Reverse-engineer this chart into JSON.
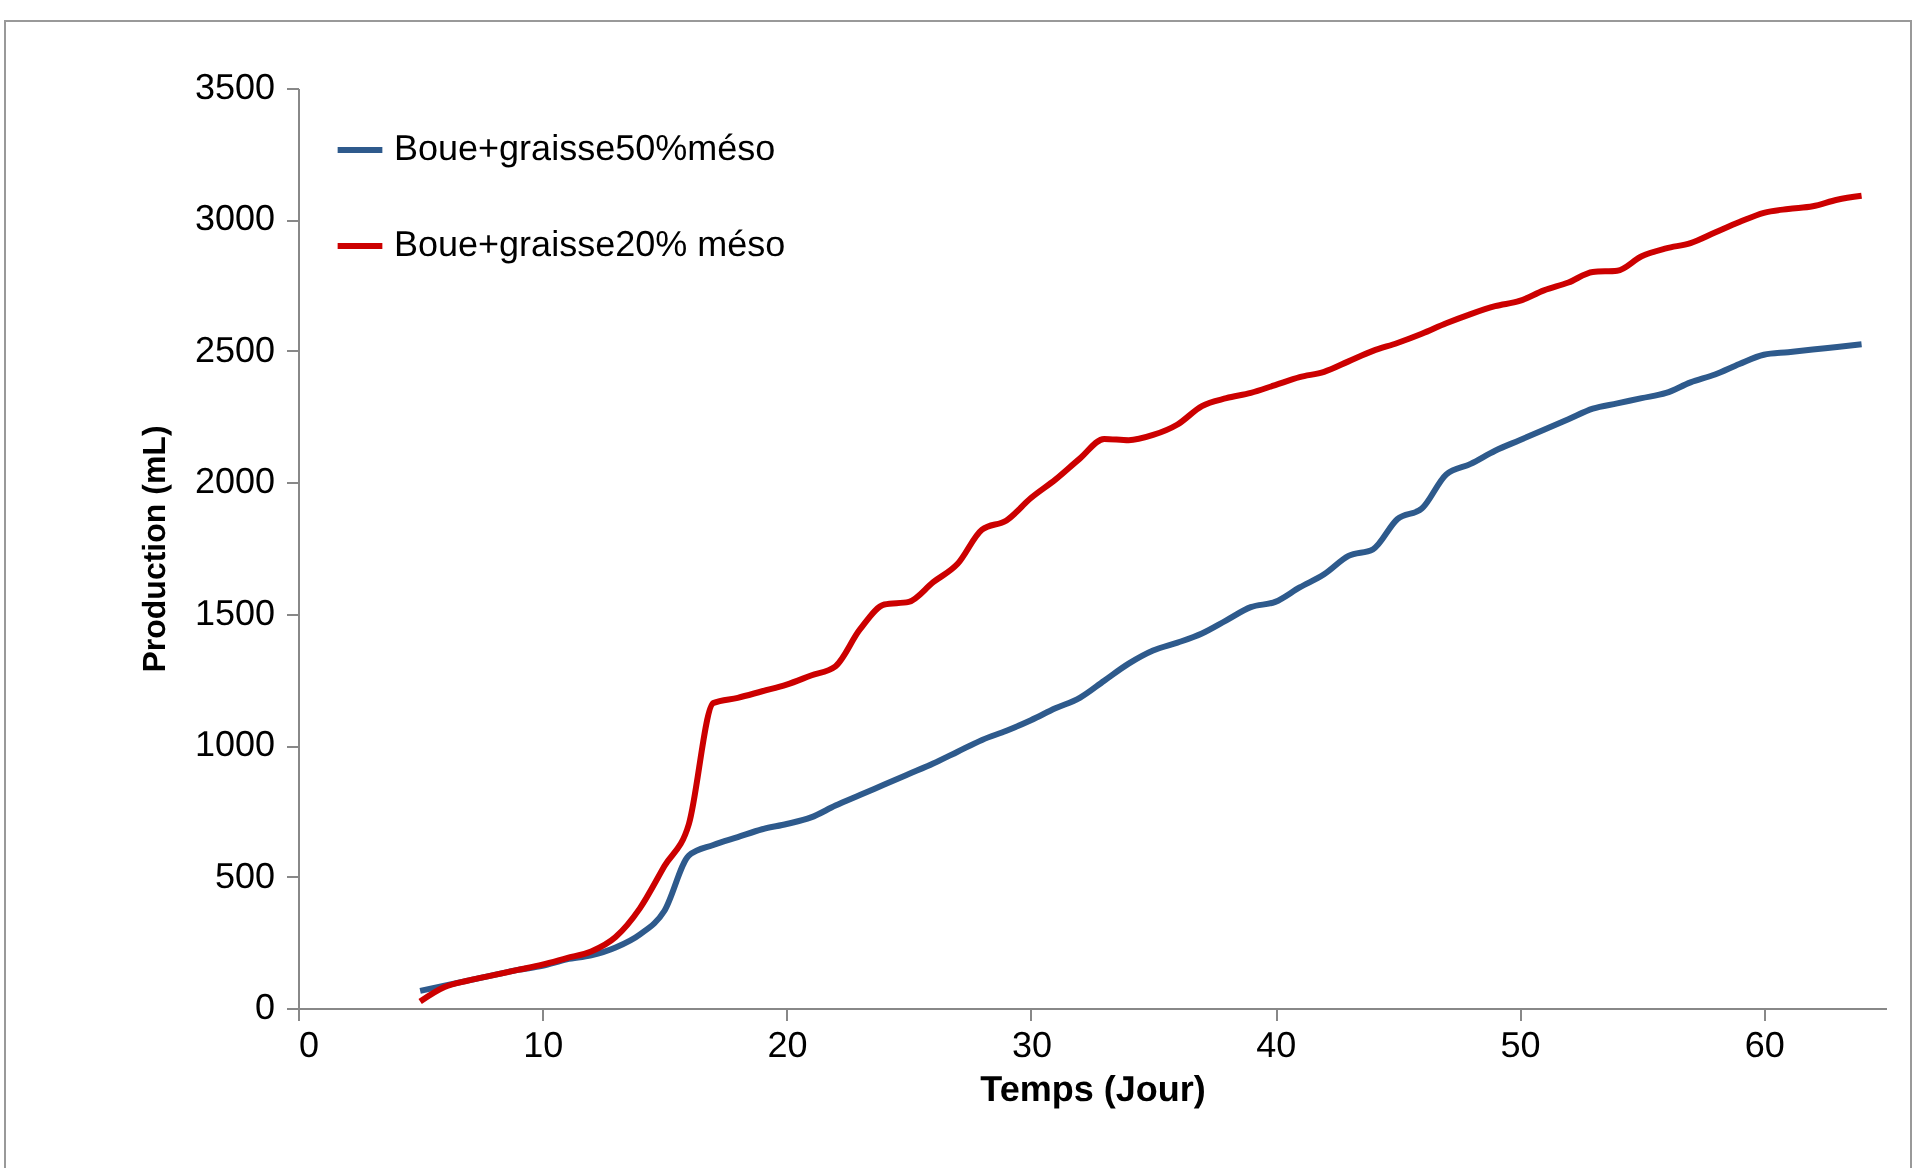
{
  "chart_data": {
    "type": "line",
    "xlabel": "Temps (Jour)",
    "ylabel": "Production (mL)",
    "x": [
      5,
      6,
      7,
      8,
      9,
      10,
      11,
      12,
      13,
      14,
      15,
      16,
      17,
      18,
      19,
      20,
      21,
      22,
      23,
      24,
      25,
      26,
      27,
      28,
      29,
      30,
      31,
      32,
      33,
      34,
      35,
      36,
      37,
      38,
      39,
      40,
      41,
      42,
      43,
      44,
      45,
      46,
      47,
      48,
      49,
      50,
      51,
      52,
      53,
      54,
      55,
      56,
      57,
      58,
      59,
      60,
      61,
      62,
      63,
      64
    ],
    "series": [
      {
        "name": "Boue+graisse50%méso",
        "color": "#2e5a8c",
        "values": [
          65,
          85,
          105,
          125,
          145,
          160,
          185,
          200,
          230,
          280,
          370,
          580,
          620,
          650,
          680,
          700,
          725,
          770,
          810,
          850,
          890,
          930,
          975,
          1020,
          1055,
          1095,
          1140,
          1180,
          1245,
          1310,
          1360,
          1390,
          1425,
          1475,
          1525,
          1545,
          1600,
          1650,
          1720,
          1745,
          1860,
          1900,
          2030,
          2070,
          2120,
          2160,
          2200,
          2240,
          2280,
          2300,
          2320,
          2340,
          2380,
          2410,
          2450,
          2485,
          2495,
          2505,
          2515,
          2525
        ]
      },
      {
        "name": "Boue+graisse20% méso",
        "color": "#cc0000",
        "values": [
          25,
          80,
          105,
          125,
          145,
          165,
          190,
          215,
          270,
          380,
          540,
          700,
          1160,
          1180,
          1205,
          1230,
          1265,
          1300,
          1440,
          1535,
          1545,
          1620,
          1690,
          1820,
          1855,
          1940,
          2010,
          2090,
          2165,
          2160,
          2180,
          2220,
          2290,
          2320,
          2340,
          2370,
          2400,
          2420,
          2460,
          2500,
          2530,
          2565,
          2605,
          2640,
          2670,
          2690,
          2730,
          2760,
          2800,
          2805,
          2860,
          2890,
          2910,
          2950,
          2990,
          3025,
          3040,
          3050,
          3075,
          3090
        ]
      }
    ],
    "xlim": [
      0,
      65
    ],
    "xticks": [
      0,
      10,
      20,
      30,
      40,
      50,
      60
    ],
    "ylim": [
      0,
      3500
    ],
    "yticks": [
      0,
      500,
      1000,
      1500,
      2000,
      2500,
      3000,
      3500
    ],
    "grid": false,
    "legend": "top left",
    "marker": "none",
    "line_style": "solid"
  }
}
